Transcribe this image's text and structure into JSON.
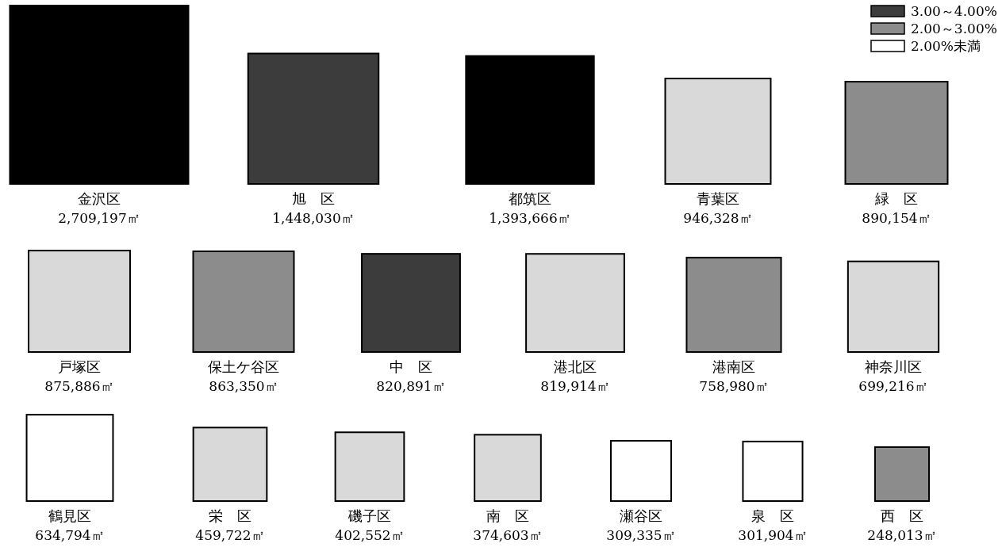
{
  "chart_data": {
    "type": "other",
    "legend": "top right",
    "categories": [
      "金沢区",
      "旭　区",
      "都筑区",
      "青葉区",
      "緑　区",
      "戸塚区",
      "保土ケ谷区",
      "中　区",
      "港北区",
      "港南区",
      "神奈川区",
      "鶴見区",
      "栄　区",
      "磯子区",
      "南　区",
      "瀬谷区",
      "泉　区",
      "西　区"
    ],
    "series": [
      {
        "color": "#000000",
        "values": [
          2709197,
          null,
          1393666,
          null,
          null,
          null,
          null,
          null,
          null,
          null,
          null,
          null,
          null,
          null,
          null,
          null,
          null,
          null
        ],
        "value_labels": [
          "2,709,197㎡",
          null,
          "1,393,666㎡",
          null,
          null,
          null,
          null,
          null,
          null,
          null,
          null,
          null,
          null,
          null,
          null,
          null,
          null,
          null
        ]
      },
      {
        "name": "3.00～4.00%",
        "color": "#3c3c3c",
        "values": [
          null,
          1448030,
          null,
          null,
          null,
          null,
          null,
          820891,
          null,
          null,
          null,
          null,
          null,
          null,
          null,
          null,
          null,
          null
        ],
        "value_labels": [
          null,
          "1,448,030㎡",
          null,
          null,
          null,
          null,
          null,
          "820,891㎡",
          null,
          null,
          null,
          null,
          null,
          null,
          null,
          null,
          null,
          null
        ]
      },
      {
        "name": "2.00～3.00%",
        "color": "#8c8c8c",
        "values": [
          null,
          null,
          null,
          null,
          890154,
          null,
          863350,
          null,
          null,
          758980,
          null,
          null,
          null,
          null,
          null,
          null,
          null,
          248013
        ],
        "value_labels": [
          null,
          null,
          null,
          null,
          "890,154㎡",
          null,
          "863,350㎡",
          null,
          null,
          "758,980㎡",
          null,
          null,
          null,
          null,
          null,
          null,
          null,
          "248,013㎡"
        ]
      },
      {
        "color": "#d9d9d9",
        "values": [
          null,
          null,
          null,
          946328,
          null,
          875886,
          null,
          null,
          819914,
          null,
          699216,
          null,
          459722,
          402552,
          374603,
          null,
          null,
          null
        ],
        "value_labels": [
          null,
          null,
          null,
          "946,328㎡",
          null,
          "875,886㎡",
          null,
          null,
          "819,914㎡",
          null,
          "699,216㎡",
          null,
          "459,722㎡",
          "402,552㎡",
          "374,603㎡",
          null,
          null,
          null
        ]
      },
      {
        "name": "2.00%未満",
        "color": "#ffffff",
        "values": [
          null,
          null,
          null,
          null,
          null,
          null,
          null,
          null,
          null,
          null,
          null,
          634794,
          null,
          null,
          null,
          309335,
          301904,
          null
        ],
        "value_labels": [
          null,
          null,
          null,
          null,
          null,
          null,
          null,
          null,
          null,
          null,
          null,
          "634,794㎡",
          null,
          null,
          null,
          "309,335㎡",
          "301,904㎡",
          null
        ]
      }
    ]
  }
}
